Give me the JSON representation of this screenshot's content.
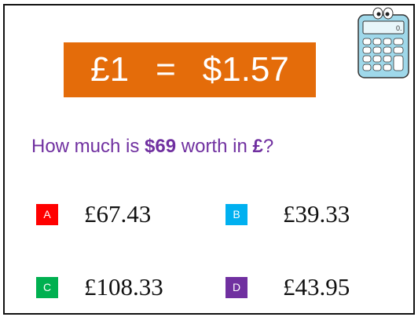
{
  "banner": {
    "left": "£1",
    "equals": "=",
    "right": "$1.57"
  },
  "question": {
    "parts": [
      "How much is ",
      "$69",
      " worth in ",
      "£",
      "?"
    ]
  },
  "options": [
    {
      "letter": "A",
      "answer": "£67.43"
    },
    {
      "letter": "B",
      "answer": "£39.33"
    },
    {
      "letter": "C",
      "answer": "£108.33"
    },
    {
      "letter": "D",
      "answer": "£43.95"
    }
  ]
}
